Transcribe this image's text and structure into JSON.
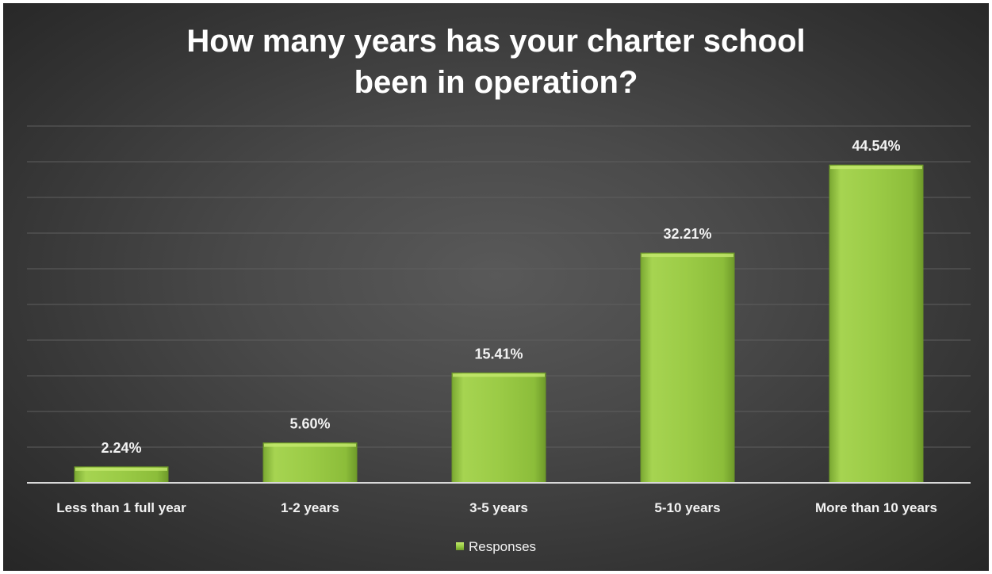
{
  "chart_data": {
    "type": "bar",
    "title": "How many years has your charter school been in operation?",
    "title_lines": [
      "How many years has your charter school",
      "been in operation?"
    ],
    "categories": [
      "Less than 1 full year",
      "1-2 years",
      "3-5 years",
      "5-10 years",
      "More than 10 years"
    ],
    "series": [
      {
        "name": "Responses",
        "values": [
          2.24,
          5.6,
          15.41,
          32.21,
          44.54
        ],
        "labels": [
          "2.24%",
          "5.60%",
          "15.41%",
          "32.21%",
          "44.54%"
        ]
      }
    ],
    "ylim": [
      0,
      50
    ],
    "grid": true,
    "legend": "bottom",
    "colors": {
      "bar": "#92c83e",
      "bar_highlight": "#c4e86e",
      "bar_shadow": "#6b9628",
      "background": "#404040",
      "gridline": "#5e5e5e",
      "axis": "#d9d9d9",
      "text": "#f2f2f2"
    }
  }
}
